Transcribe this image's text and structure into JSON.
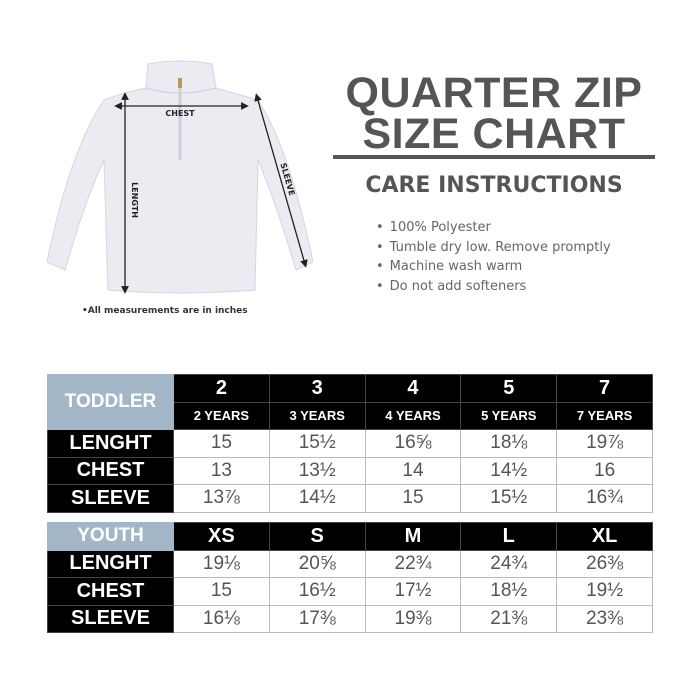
{
  "shirt": {
    "chest_label": "CHEST",
    "length_label": "LENGTH",
    "sleeve_label": "SLEEVE",
    "note": "•All measurements are in inches"
  },
  "title": {
    "line1": "QUARTER ZIP",
    "line2": "SIZE CHART"
  },
  "care": {
    "heading": "CARE INSTRUCTIONS",
    "items": [
      "100% Polyester",
      "Tumble dry low. Remove promptly",
      "Machine wash warm",
      "Do not add softeners"
    ]
  },
  "toddler": {
    "category": "TODDLER",
    "sizes": [
      "2",
      "3",
      "4",
      "5",
      "7"
    ],
    "ages": [
      "2 YEARS",
      "3 YEARS",
      "4 YEARS",
      "5 YEARS",
      "7 YEARS"
    ],
    "rows": [
      {
        "label": "LENGHT",
        "values": [
          "15",
          "15½",
          "16⅝",
          "18⅛",
          "19⅞"
        ]
      },
      {
        "label": "CHEST",
        "values": [
          "13",
          "13½",
          "14",
          "14½",
          "16"
        ]
      },
      {
        "label": "SLEEVE",
        "values": [
          "13⅞",
          "14½",
          "15",
          "15½",
          "16¾"
        ]
      }
    ]
  },
  "youth": {
    "category": "YOUTH",
    "sizes": [
      "XS",
      "S",
      "M",
      "L",
      "XL"
    ],
    "rows": [
      {
        "label": "LENGHT",
        "values": [
          "19⅛",
          "20⅝",
          "22¾",
          "24¾",
          "26⅜"
        ]
      },
      {
        "label": "CHEST",
        "values": [
          "15",
          "16½",
          "17½",
          "18½",
          "19½"
        ]
      },
      {
        "label": "SLEEVE",
        "values": [
          "16⅛",
          "17⅜",
          "19⅜",
          "21⅜",
          "23⅜"
        ]
      }
    ]
  },
  "colors": {
    "category_bg": "#a3b6c8",
    "header_bg": "#000000",
    "title": "#555555"
  }
}
